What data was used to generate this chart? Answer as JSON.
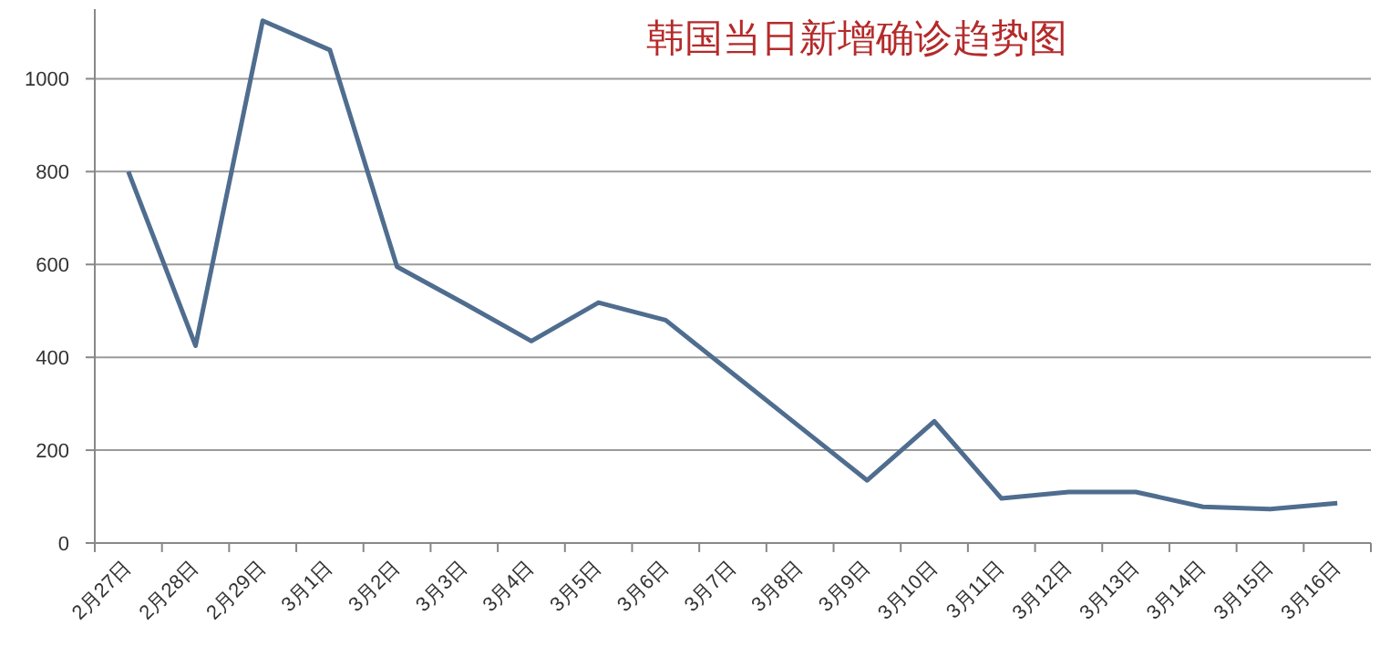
{
  "chart_data": {
    "type": "line",
    "title": "韩国当日新增确诊趋势图",
    "categories": [
      "2月27日",
      "2月28日",
      "2月29日",
      "3月1日",
      "3月2日",
      "3月3日",
      "3月4日",
      "3月5日",
      "3月6日",
      "3月7日",
      "3月8日",
      "3月9日",
      "3月10日",
      "3月11日",
      "3月12日",
      "3月13日",
      "3月14日",
      "3月15日",
      "3月16日"
    ],
    "series": [
      {
        "color": "#4f6d8f",
        "values": [
          800,
          425,
          1125,
          1062,
          595,
          516,
          435,
          518,
          480,
          365,
          250,
          135,
          262,
          96,
          110,
          110,
          78,
          73,
          86
        ]
      }
    ],
    "ylim": [
      0,
      1150
    ],
    "yticks": [
      0,
      200,
      400,
      600,
      800,
      1000
    ],
    "grid": "y",
    "marker": "none",
    "line_style": "solid"
  }
}
